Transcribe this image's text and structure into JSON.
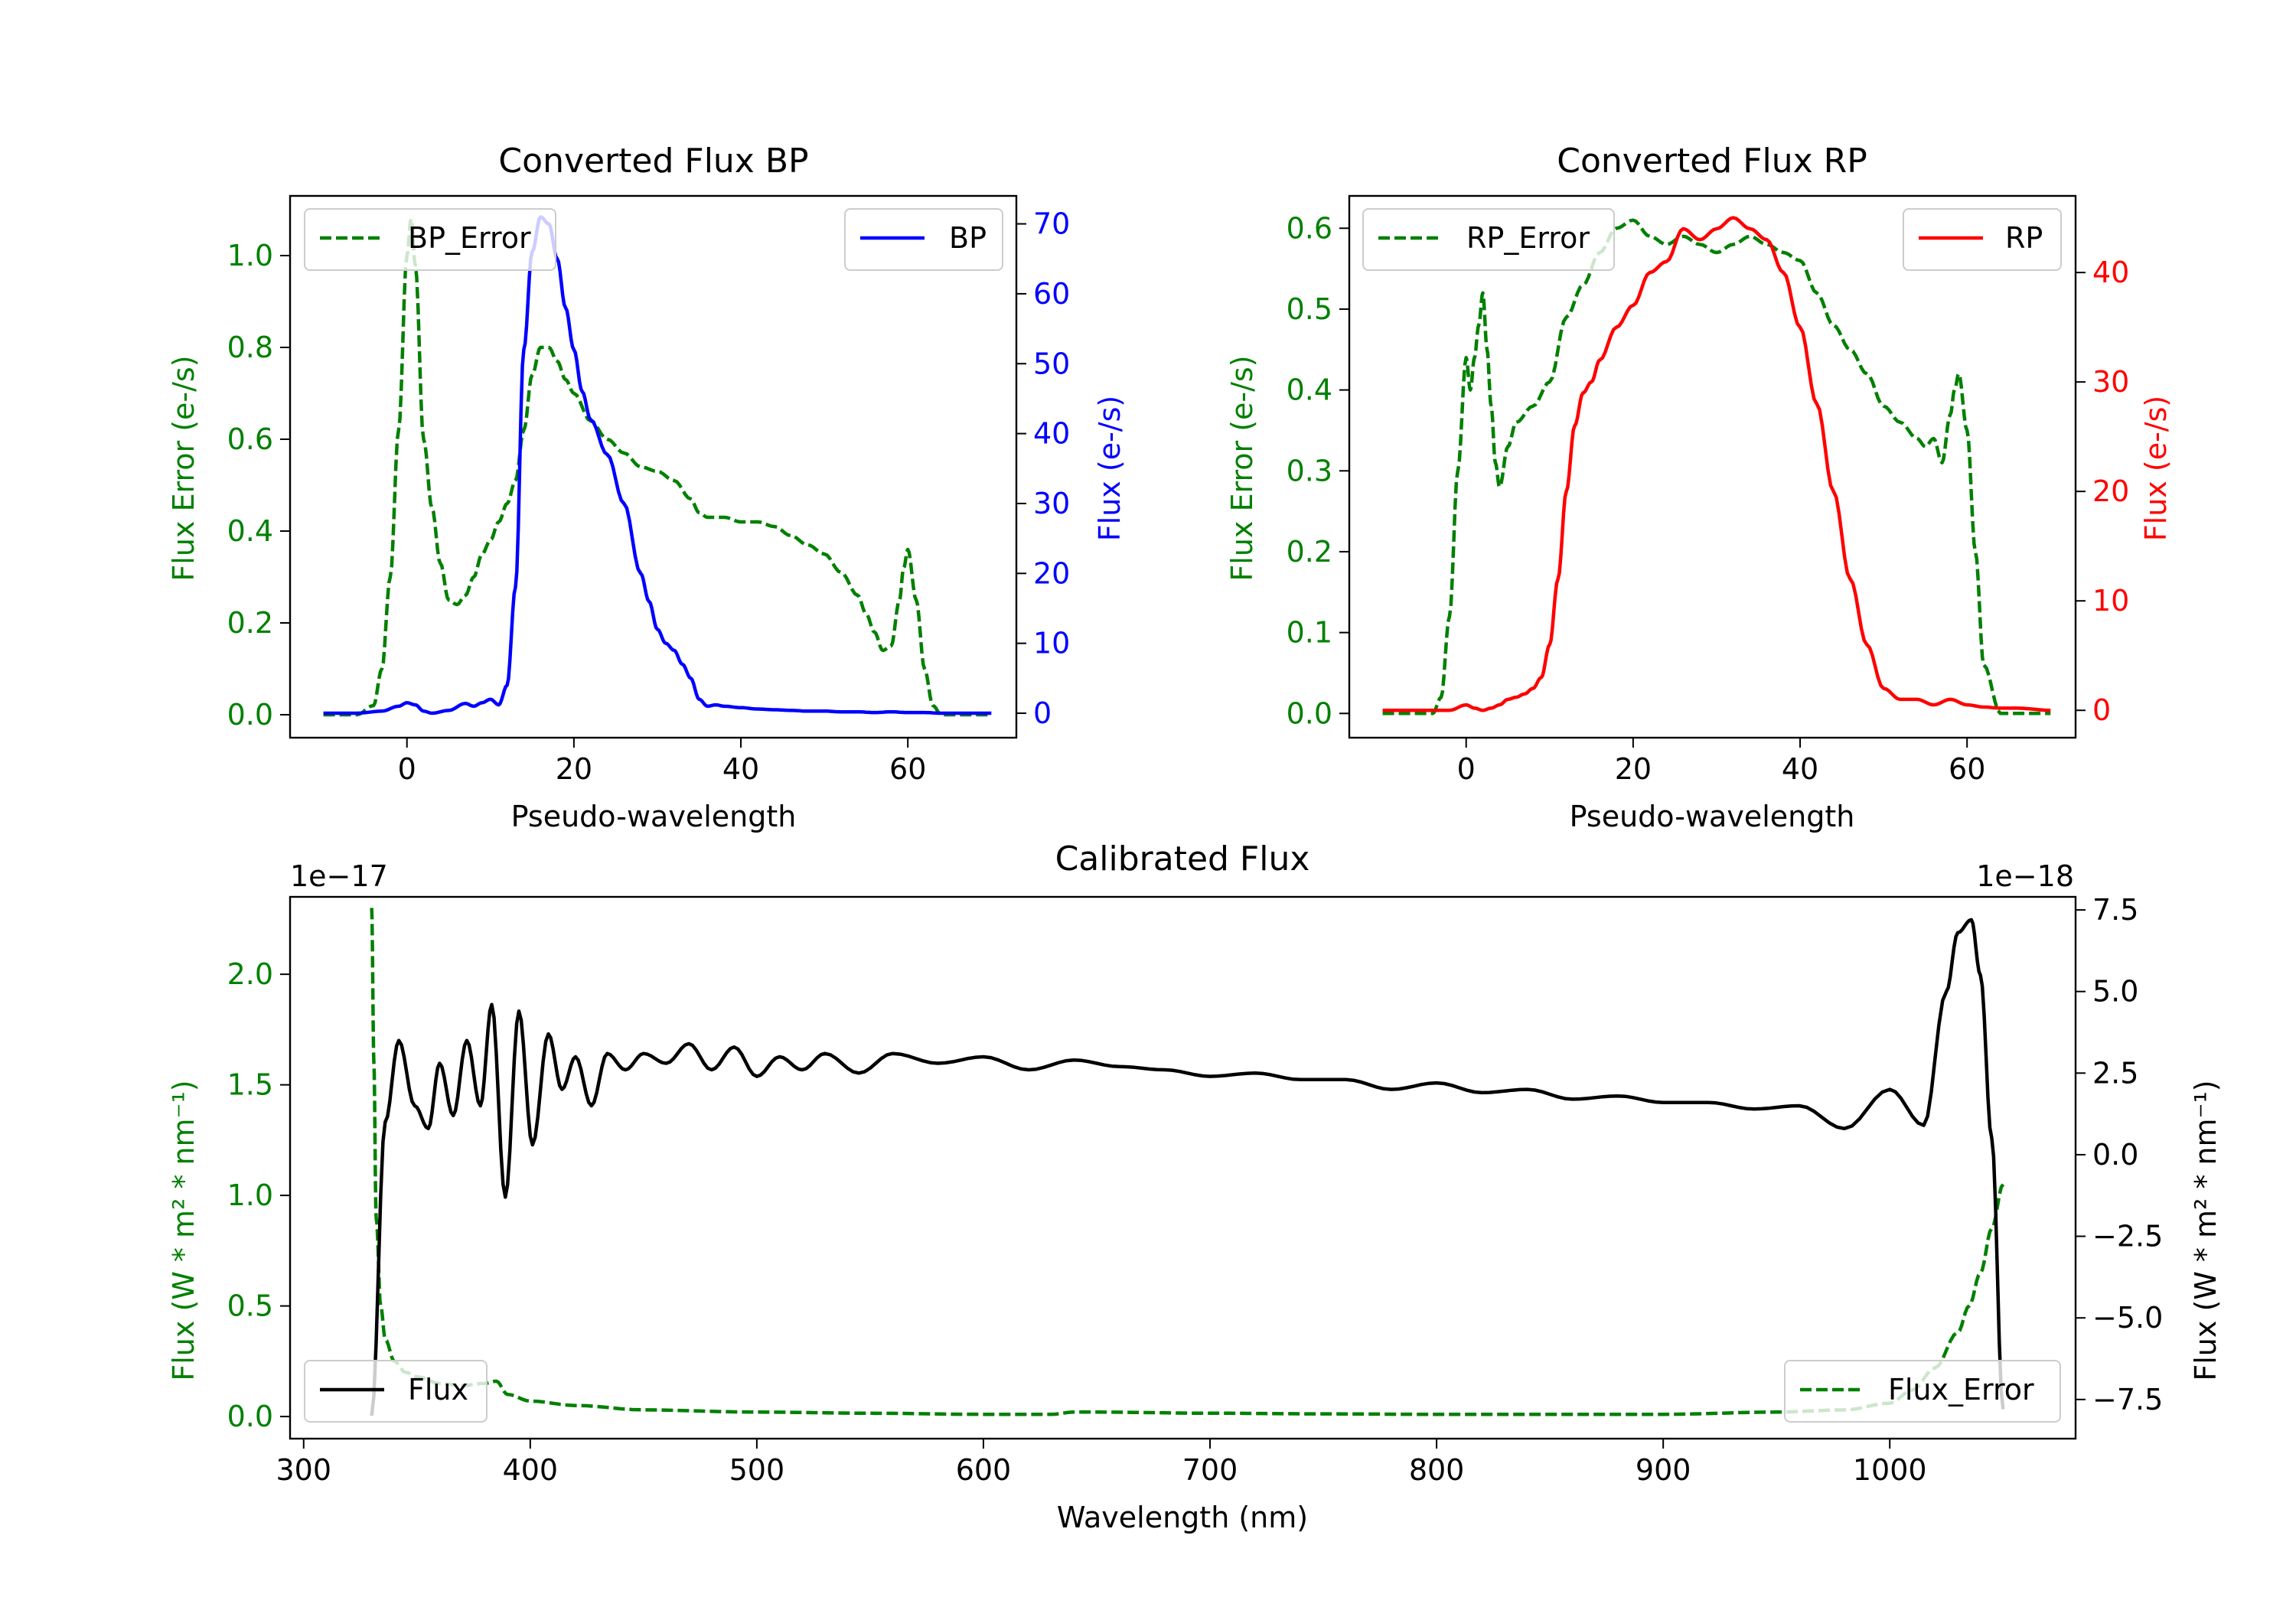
{
  "colors": {
    "error": "#008000",
    "bp": "#0000ff",
    "rp": "#ff0000",
    "flux": "#000000",
    "axis": "#000000"
  },
  "chart_data": [
    {
      "id": "bp",
      "type": "line",
      "title": "Converted Flux BP",
      "xlabel": "Pseudo-wavelength",
      "xlim": [
        -14,
        73
      ],
      "xticks": [
        0,
        20,
        40,
        60
      ],
      "left_axis": {
        "label": "Flux Error (e-/s)",
        "ylim": [
          -0.05,
          1.13
        ],
        "ticks": [
          "0.0",
          "0.2",
          "0.4",
          "0.6",
          "0.8",
          "1.0"
        ],
        "tick_values": [
          0,
          0.2,
          0.4,
          0.6,
          0.8,
          1.0
        ]
      },
      "right_axis": {
        "label": "Flux (e-/s)",
        "ylim": [
          -3.5,
          74
        ],
        "ticks": [
          "0",
          "10",
          "20",
          "30",
          "40",
          "50",
          "60",
          "70"
        ],
        "tick_values": [
          0,
          10,
          20,
          30,
          40,
          50,
          60,
          70
        ]
      },
      "legends": {
        "left": {
          "label": "BP_Error",
          "position": "upper left"
        },
        "right": {
          "label": "BP",
          "position": "upper right"
        }
      },
      "series": [
        {
          "name": "BP_Error",
          "axis": "left",
          "style": "dashed",
          "x": [
            -10,
            -6,
            -4,
            -3,
            -2,
            -1,
            0,
            0.5,
            1,
            2,
            3,
            4,
            5,
            6,
            7,
            8,
            9,
            10,
            11,
            12,
            13,
            14,
            15,
            16,
            17,
            18,
            19,
            20,
            22,
            24,
            26,
            28,
            30,
            32,
            34,
            35,
            36,
            38,
            40,
            42,
            44,
            46,
            48,
            50,
            52,
            54,
            55,
            56,
            57,
            58,
            59,
            59.5,
            60,
            61,
            62,
            63,
            64,
            66,
            68,
            70
          ],
          "y": [
            0.0,
            0.0,
            0.02,
            0.1,
            0.3,
            0.62,
            1.0,
            1.08,
            0.98,
            0.6,
            0.45,
            0.33,
            0.25,
            0.24,
            0.26,
            0.3,
            0.35,
            0.38,
            0.42,
            0.46,
            0.51,
            0.62,
            0.74,
            0.8,
            0.8,
            0.77,
            0.73,
            0.7,
            0.64,
            0.6,
            0.57,
            0.54,
            0.53,
            0.51,
            0.47,
            0.44,
            0.43,
            0.43,
            0.42,
            0.42,
            0.41,
            0.39,
            0.37,
            0.35,
            0.31,
            0.26,
            0.22,
            0.18,
            0.14,
            0.15,
            0.25,
            0.32,
            0.36,
            0.25,
            0.1,
            0.02,
            0.0,
            0.0,
            0.0,
            0.0
          ]
        },
        {
          "name": "BP",
          "axis": "right",
          "style": "solid",
          "x": [
            -10,
            -6,
            -3,
            -1,
            0,
            1,
            2,
            3,
            5,
            7,
            8,
            9,
            10,
            11,
            12,
            13,
            14,
            15,
            16,
            17,
            18,
            19,
            20,
            21,
            22,
            24,
            26,
            28,
            29,
            30,
            31,
            32,
            33,
            34,
            35,
            36,
            37,
            38,
            40,
            42,
            44,
            46,
            48,
            50,
            52,
            54,
            56,
            58,
            60,
            62,
            64,
            66,
            68,
            70
          ],
          "y": [
            0,
            0,
            0.3,
            1,
            1.5,
            1.2,
            0.3,
            0,
            0.4,
            1.4,
            1.0,
            1.5,
            2.0,
            1.2,
            4,
            18,
            52,
            66,
            71,
            70,
            65,
            58,
            52,
            46,
            42,
            37,
            30,
            20,
            16,
            12,
            10,
            9,
            7,
            5,
            2,
            1,
            1.2,
            1.0,
            0.8,
            0.6,
            0.5,
            0.4,
            0.3,
            0.3,
            0.2,
            0.2,
            0.1,
            0.2,
            0.1,
            0.1,
            0.0,
            0.0,
            0.0,
            0.0
          ]
        }
      ]
    },
    {
      "id": "rp",
      "type": "line",
      "title": "Converted Flux RP",
      "xlabel": "Pseudo-wavelength",
      "xlim": [
        -14,
        73
      ],
      "xticks": [
        0,
        20,
        40,
        60
      ],
      "left_axis": {
        "label": "Flux Error (e-/s)",
        "ylim": [
          -0.03,
          0.64
        ],
        "ticks": [
          "0.0",
          "0.1",
          "0.2",
          "0.3",
          "0.4",
          "0.5",
          "0.6"
        ],
        "tick_values": [
          0,
          0.1,
          0.2,
          0.3,
          0.4,
          0.5,
          0.6
        ]
      },
      "right_axis": {
        "label": "Flux (e-/s)",
        "ylim": [
          -2.5,
          47
        ],
        "ticks": [
          "0",
          "10",
          "20",
          "30",
          "40"
        ],
        "tick_values": [
          0,
          10,
          20,
          30,
          40
        ]
      },
      "legends": {
        "left": {
          "label": "RP_Error",
          "position": "upper left"
        },
        "right": {
          "label": "RP",
          "position": "upper right"
        }
      },
      "series": [
        {
          "name": "RP_Error",
          "axis": "left",
          "style": "dashed",
          "x": [
            -10,
            -4,
            -3,
            -2,
            -1,
            0,
            0.5,
            1,
            1.5,
            2,
            2.5,
            3,
            3.5,
            4,
            5,
            6,
            8,
            10,
            12,
            14,
            16,
            18,
            20,
            22,
            24,
            26,
            28,
            30,
            32,
            34,
            36,
            38,
            40,
            42,
            44,
            46,
            48,
            50,
            52,
            54,
            55,
            56,
            57,
            58,
            58.5,
            59,
            60,
            61,
            62,
            64,
            66,
            70
          ],
          "y": [
            0.0,
            0.0,
            0.02,
            0.12,
            0.3,
            0.44,
            0.4,
            0.44,
            0.48,
            0.52,
            0.45,
            0.38,
            0.31,
            0.28,
            0.33,
            0.36,
            0.38,
            0.41,
            0.49,
            0.53,
            0.57,
            0.6,
            0.61,
            0.59,
            0.58,
            0.59,
            0.58,
            0.57,
            0.58,
            0.59,
            0.58,
            0.57,
            0.56,
            0.52,
            0.48,
            0.45,
            0.42,
            0.38,
            0.36,
            0.34,
            0.33,
            0.34,
            0.31,
            0.37,
            0.4,
            0.42,
            0.35,
            0.2,
            0.06,
            0.0,
            0.0,
            0.0
          ]
        },
        {
          "name": "RP",
          "axis": "right",
          "style": "solid",
          "x": [
            -10,
            -4,
            -2,
            0,
            1,
            2,
            3,
            4,
            5,
            6,
            7,
            8,
            9,
            10,
            11,
            12,
            13,
            14,
            15,
            16,
            18,
            20,
            22,
            24,
            26,
            28,
            30,
            32,
            34,
            36,
            38,
            40,
            42,
            44,
            46,
            48,
            50,
            52,
            54,
            56,
            58,
            60,
            62,
            64,
            66,
            70
          ],
          "y": [
            0,
            0,
            0,
            0.5,
            0.2,
            0,
            0.2,
            0.5,
            1.0,
            1.2,
            1.5,
            2.0,
            3.0,
            6,
            12,
            20,
            26,
            29,
            30,
            32,
            35,
            37,
            40,
            41,
            44,
            43,
            44,
            45,
            44,
            43,
            40,
            35,
            28,
            20,
            12,
            6,
            2,
            1,
            1,
            0.5,
            1,
            0.5,
            0.3,
            0.2,
            0.2,
            0
          ]
        }
      ]
    },
    {
      "id": "calibrated",
      "type": "line",
      "title": "Calibrated Flux",
      "xlabel": "Wavelength (nm)",
      "xlim": [
        294,
        1082
      ],
      "xticks": [
        300,
        400,
        500,
        600,
        700,
        800,
        900,
        1000
      ],
      "left_axis": {
        "label": "Flux (W * m² * nm⁻¹)",
        "offset_text": "1e−17",
        "ylim": [
          -0.1,
          2.35
        ],
        "ticks": [
          "0.0",
          "0.5",
          "1.0",
          "1.5",
          "2.0"
        ],
        "tick_values": [
          0,
          0.5,
          1.0,
          1.5,
          2.0
        ]
      },
      "right_axis": {
        "label": "Flux (W * m² * nm⁻¹)",
        "offset_text": "1e−18",
        "ylim": [
          -8.7,
          7.9
        ],
        "ticks": [
          "7.5",
          "5.0",
          "2.5",
          "0.0",
          "−2.5",
          "−5.0",
          "−7.5"
        ],
        "tick_values": [
          7.5,
          5.0,
          2.5,
          0.0,
          -2.5,
          -5.0,
          -7.5
        ]
      },
      "legends": {
        "left": {
          "label": "Flux",
          "position": "lower left"
        },
        "right": {
          "label": "Flux_Error",
          "position": "lower right"
        }
      },
      "series": [
        {
          "name": "Flux_Error",
          "axis": "left",
          "style": "dashed",
          "x": [
            330,
            331,
            332,
            334,
            336,
            340,
            345,
            350,
            360,
            370,
            380,
            385,
            390,
            400,
            420,
            450,
            500,
            550,
            600,
            630,
            640,
            650,
            700,
            750,
            800,
            850,
            900,
            950,
            980,
            1000,
            1010,
            1020,
            1030,
            1035,
            1040,
            1045,
            1050
          ],
          "y": [
            2.3,
            1.6,
            0.9,
            0.5,
            0.35,
            0.25,
            0.2,
            0.18,
            0.15,
            0.14,
            0.15,
            0.16,
            0.1,
            0.07,
            0.05,
            0.03,
            0.02,
            0.015,
            0.01,
            0.01,
            0.02,
            0.02,
            0.015,
            0.012,
            0.01,
            0.01,
            0.01,
            0.02,
            0.03,
            0.06,
            0.12,
            0.22,
            0.38,
            0.5,
            0.65,
            0.85,
            1.05
          ]
        },
        {
          "name": "Flux",
          "axis": "right",
          "style": "solid",
          "x": [
            330,
            1050
          ],
          "y": [
            -8.0,
            -8.0
          ],
          "description_points": {
            "x": [
              330,
              336,
              342,
              349,
              355,
              360,
              366,
              372,
              378,
              383,
              389,
              395,
              401,
              408,
              414,
              420,
              427,
              434,
              442,
              450,
              460,
              470,
              480,
              490,
              500,
              510,
              520,
              530,
              545,
              560,
              580,
              600,
              620,
              640,
              660,
              680,
              700,
              720,
              740,
              760,
              780,
              800,
              820,
              840,
              860,
              880,
              900,
              920,
              940,
              960,
              980,
              1000,
              1015,
              1025,
              1030,
              1036,
              1040,
              1045,
              1050
            ],
            "y": [
              -8.0,
              1.0,
              3.5,
              1.5,
              0.8,
              2.8,
              1.2,
              3.5,
              1.5,
              4.6,
              -1.3,
              4.4,
              0.3,
              3.7,
              2.0,
              3.0,
              1.5,
              3.1,
              2.6,
              3.1,
              2.8,
              3.4,
              2.6,
              3.3,
              2.4,
              3.0,
              2.6,
              3.1,
              2.5,
              3.1,
              2.8,
              3.0,
              2.6,
              2.9,
              2.7,
              2.6,
              2.4,
              2.5,
              2.3,
              2.3,
              2.0,
              2.2,
              1.9,
              2.0,
              1.7,
              1.8,
              1.6,
              1.6,
              1.4,
              1.5,
              0.8,
              2.0,
              0.9,
              5.0,
              6.8,
              7.2,
              5.5,
              0.5,
              -7.8
            ]
          }
        }
      ]
    }
  ]
}
